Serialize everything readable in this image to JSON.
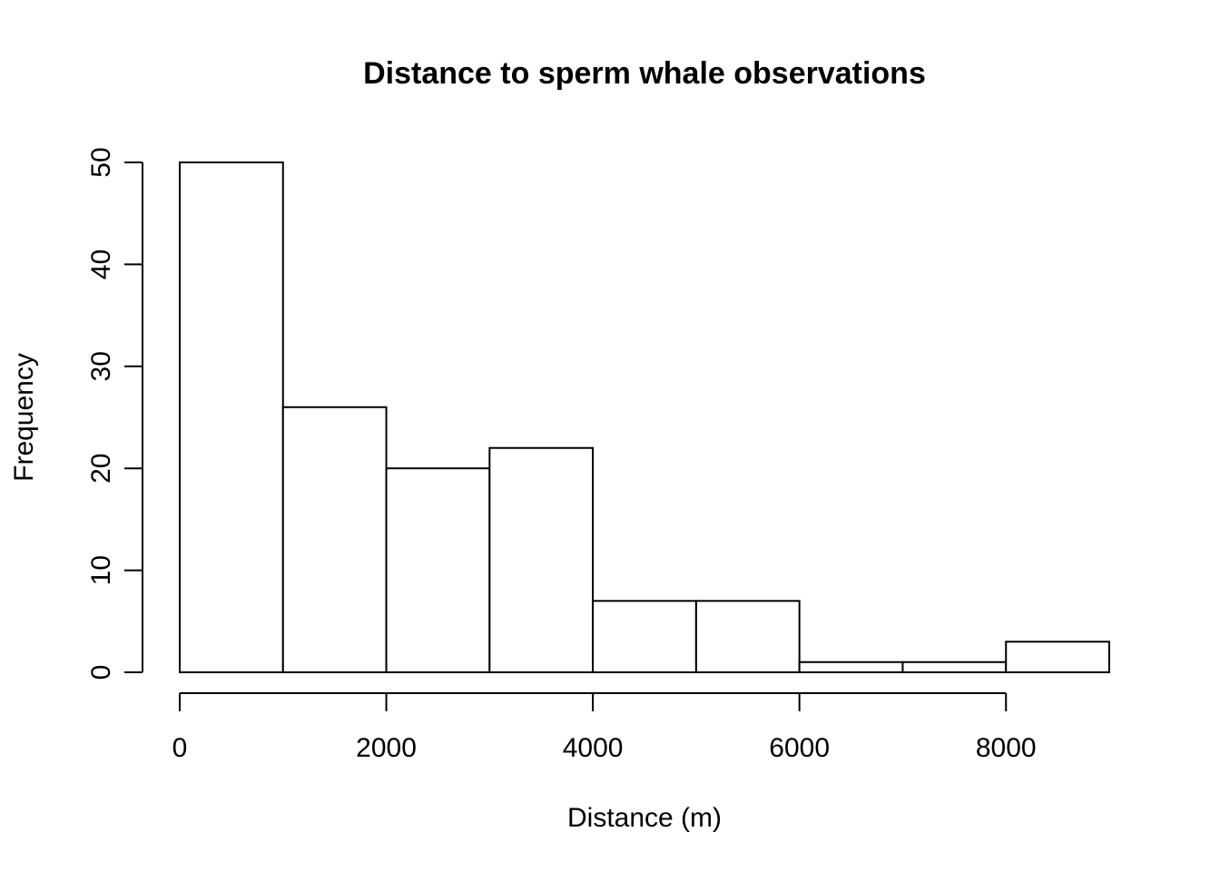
{
  "chart_data": {
    "type": "bar",
    "title": "Distance to sperm whale observations",
    "xlabel": "Distance (m)",
    "ylabel": "Frequency",
    "bins": [
      {
        "start": 0,
        "end": 1000,
        "count": 50
      },
      {
        "start": 1000,
        "end": 2000,
        "count": 26
      },
      {
        "start": 2000,
        "end": 3000,
        "count": 20
      },
      {
        "start": 3000,
        "end": 4000,
        "count": 22
      },
      {
        "start": 4000,
        "end": 5000,
        "count": 7
      },
      {
        "start": 5000,
        "end": 6000,
        "count": 7
      },
      {
        "start": 6000,
        "end": 7000,
        "count": 1
      },
      {
        "start": 7000,
        "end": 8000,
        "count": 1
      },
      {
        "start": 8000,
        "end": 9000,
        "count": 3
      }
    ],
    "xticks": [
      0,
      2000,
      4000,
      6000,
      8000
    ],
    "xtick_labels": [
      "0",
      "2000",
      "4000",
      "6000",
      "8000"
    ],
    "yticks": [
      0,
      10,
      20,
      30,
      40,
      50
    ],
    "ytick_labels": [
      "0",
      "10",
      "20",
      "30",
      "40",
      "50"
    ],
    "xlim": [
      0,
      9000
    ],
    "ylim": [
      0,
      50
    ],
    "grid": false,
    "bar_fill": "#ffffff",
    "bar_stroke": "#000000"
  }
}
